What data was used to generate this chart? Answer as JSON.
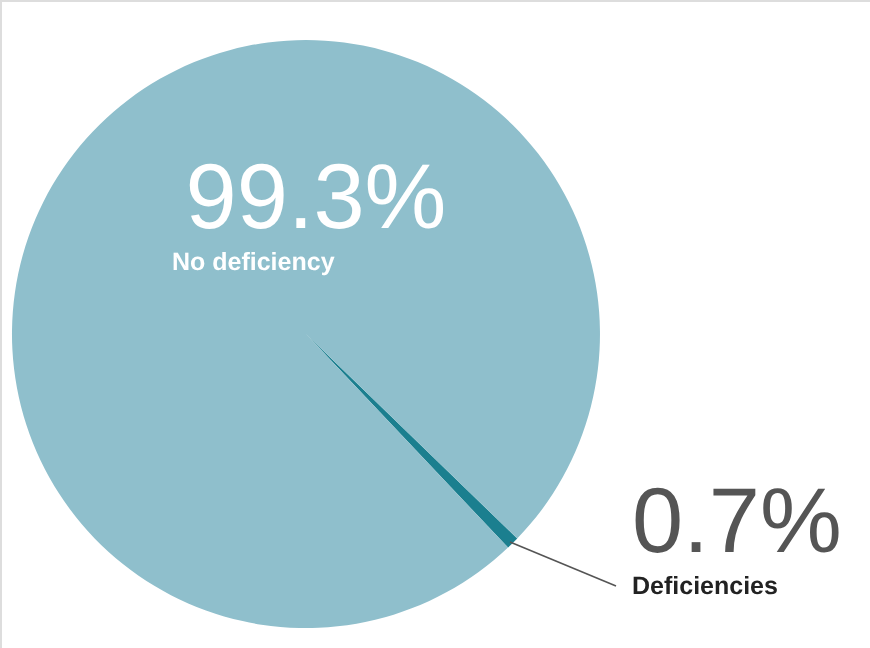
{
  "chart_data": {
    "type": "pie",
    "categories": [
      "Deficiencies",
      "No deficiency"
    ],
    "values": [
      0.7,
      99.3
    ],
    "value_labels": [
      "0.7%",
      "99.3%"
    ],
    "colors": [
      "#1b7f8f",
      "#8fbfcc"
    ]
  }
}
